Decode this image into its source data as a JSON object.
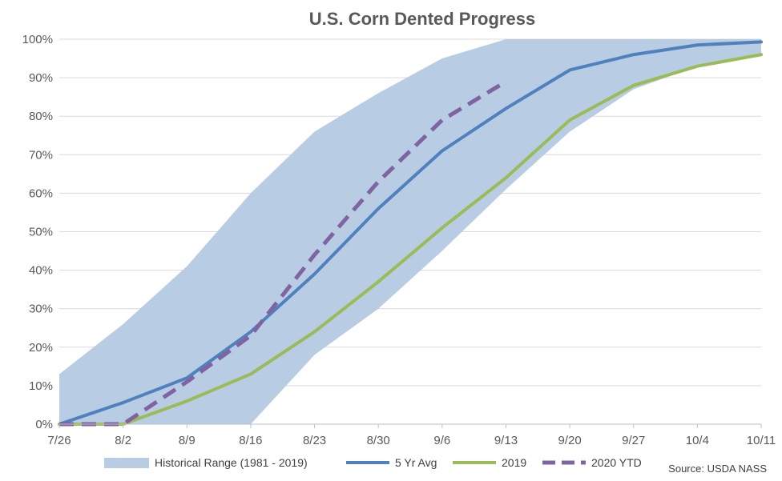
{
  "chart_data": {
    "type": "line",
    "title": "U.S. Corn Dented Progress",
    "xlabel": "",
    "ylabel": "",
    "categories": [
      "7/26",
      "8/2",
      "8/9",
      "8/16",
      "8/23",
      "8/30",
      "9/6",
      "9/13",
      "9/20",
      "9/27",
      "10/4",
      "10/11"
    ],
    "y_ticks": [
      "0%",
      "10%",
      "20%",
      "30%",
      "40%",
      "50%",
      "60%",
      "70%",
      "80%",
      "90%",
      "100%"
    ],
    "ylim": [
      0,
      100
    ],
    "grid": "horizontal",
    "legend_position": "bottom",
    "range": {
      "name": "Historical Range (1981 - 2019)",
      "color": "#b8cce4",
      "low": [
        0,
        0,
        0,
        0,
        18,
        30,
        45,
        61,
        76,
        87,
        93,
        96
      ],
      "high": [
        13,
        26,
        41,
        60,
        76,
        86,
        95,
        100,
        100,
        100,
        100,
        100
      ]
    },
    "series": [
      {
        "name": "5 Yr Avg",
        "color": "#4f81bd",
        "dashed": false,
        "values": [
          0,
          5.6,
          12,
          24,
          39,
          56,
          71,
          82,
          92,
          96,
          98.5,
          99.3
        ]
      },
      {
        "name": "2019",
        "color": "#9bbb59",
        "dashed": false,
        "values": [
          0,
          0,
          6,
          13,
          24,
          37,
          51,
          64,
          79,
          88,
          93,
          96
        ]
      },
      {
        "name": "2020 YTD",
        "color": "#8064a2",
        "dashed": true,
        "values": [
          0,
          0,
          11,
          23,
          44,
          63,
          79,
          89,
          null,
          null,
          null,
          null
        ]
      }
    ],
    "source": "Source: USDA NASS"
  }
}
